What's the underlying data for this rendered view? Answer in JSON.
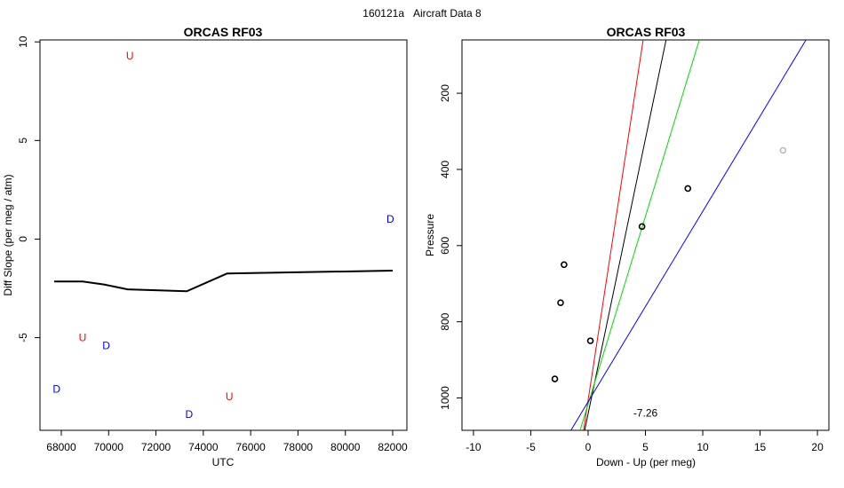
{
  "figure": {
    "suptitle_id": "160121a",
    "suptitle_text": "Aircraft Data 8"
  },
  "chart_data": [
    {
      "type": "line",
      "title": "ORCAS RF03",
      "xlabel": "UTC",
      "ylabel": "Diff Slope (per meg / atm)",
      "xlim": [
        67100,
        82600
      ],
      "ylim": [
        -9.7,
        10.1
      ],
      "x_ticks": [
        68000,
        70000,
        72000,
        74000,
        76000,
        78000,
        80000,
        82000
      ],
      "x_tick_labels": [
        "68000",
        "70000",
        "72000",
        "74000",
        "76000",
        "78000",
        "80000",
        "82000"
      ],
      "y_ticks": [
        -5,
        0,
        5,
        10
      ],
      "y_tick_labels": [
        "-5",
        "0",
        "5",
        "10"
      ],
      "series": [
        {
          "color": "#000000",
          "x": [
            67700,
            68900,
            69800,
            70800,
            73300,
            75000,
            82000
          ],
          "y": [
            -2.15,
            -2.15,
            -2.3,
            -2.55,
            -2.65,
            -1.75,
            -1.6
          ]
        }
      ],
      "markers": [
        {
          "label": "U",
          "color": "#ff0000",
          "x": 70900,
          "y": 9.3
        },
        {
          "label": "U",
          "color": "#ff0000",
          "x": 68900,
          "y": -5.0
        },
        {
          "label": "D",
          "color": "#0000ff",
          "x": 69900,
          "y": -5.4
        },
        {
          "label": "D",
          "color": "#0000ff",
          "x": 67800,
          "y": -7.6
        },
        {
          "label": "D",
          "color": "#0000ff",
          "x": 73400,
          "y": -8.9
        },
        {
          "label": "U",
          "color": "#ff0000",
          "x": 75100,
          "y": -8.0
        },
        {
          "label": "D",
          "color": "#0000ff",
          "x": 81900,
          "y": 1.0
        }
      ]
    },
    {
      "type": "scatter",
      "title": "ORCAS RF03",
      "xlabel": "Down - Up (per meg)",
      "ylabel": "Pressure",
      "xlim": [
        -11,
        21
      ],
      "ylim_reversed": [
        60,
        1085
      ],
      "x_ticks": [
        -10,
        -5,
        0,
        5,
        10,
        15,
        20
      ],
      "x_tick_labels": [
        "-10",
        "-5",
        "0",
        "5",
        "10",
        "15",
        "20"
      ],
      "y_ticks": [
        200,
        400,
        600,
        800,
        1000
      ],
      "y_tick_labels": [
        "200",
        "400",
        "600",
        "800",
        "1000"
      ],
      "points": [
        {
          "x": 17.0,
          "y": 350,
          "color": "#bbbbbb"
        },
        {
          "x": 8.7,
          "y": 450,
          "color": "#000000"
        },
        {
          "x": 4.7,
          "y": 550,
          "color": "#000000"
        },
        {
          "x": -2.1,
          "y": 650,
          "color": "#000000"
        },
        {
          "x": -2.4,
          "y": 750,
          "color": "#000000"
        },
        {
          "x": 0.2,
          "y": 850,
          "color": "#000000"
        },
        {
          "x": -2.9,
          "y": 950,
          "color": "#000000"
        }
      ],
      "fit_lines": [
        {
          "color": "#ff0000",
          "points": [
            [
              -0.4,
              1085
            ],
            [
              4.8,
              60
            ]
          ]
        },
        {
          "color": "#000000",
          "points": [
            [
              -0.3,
              1085
            ],
            [
              6.8,
              60
            ]
          ]
        },
        {
          "color": "#00dd00",
          "points": [
            [
              -0.7,
              1085
            ],
            [
              9.7,
              60
            ]
          ]
        },
        {
          "color": "#0000ff",
          "points": [
            [
              -1.5,
              1085
            ],
            [
              19.0,
              60
            ]
          ]
        }
      ],
      "annotation": {
        "text": "-7.26",
        "x": 5.0,
        "y": 1040
      }
    }
  ]
}
